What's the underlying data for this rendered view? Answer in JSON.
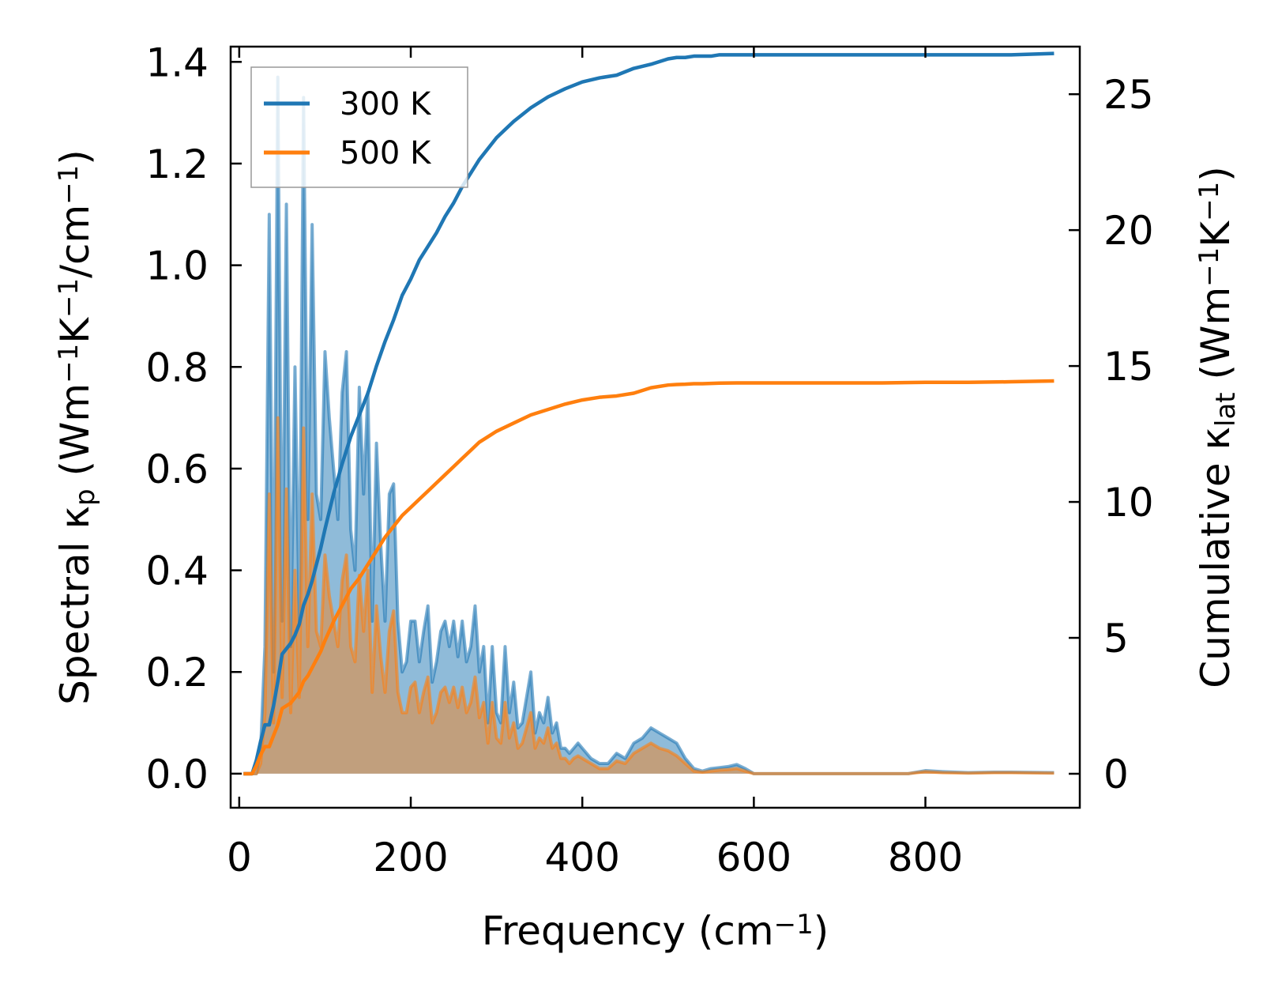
{
  "chart_data": {
    "type": "line",
    "xlabel": {
      "pre": "Frequency (cm",
      "sup": "−1",
      "post": ")"
    },
    "ylabel_left": {
      "parts": [
        {
          "t": "Spectral κ"
        },
        {
          "t": "p",
          "sub": true
        },
        {
          "t": " (Wm"
        },
        {
          "t": "−1",
          "sup": true
        },
        {
          "t": "K"
        },
        {
          "t": "−1",
          "sup": true
        },
        {
          "t": "/cm"
        },
        {
          "t": "−1",
          "sup": true
        },
        {
          "t": ")"
        }
      ]
    },
    "ylabel_right": {
      "parts": [
        {
          "t": "Cumulative κ"
        },
        {
          "t": "lat",
          "sub": true
        },
        {
          "t": " (Wm"
        },
        {
          "t": "−1",
          "sup": true
        },
        {
          "t": "K"
        },
        {
          "t": "−1",
          "sup": true
        },
        {
          "t": ")"
        }
      ]
    },
    "xlim": [
      -10,
      980
    ],
    "ylim_left": [
      -0.067,
      1.43
    ],
    "ylim_right": [
      -1.25,
      26.75
    ],
    "xticks": [
      0,
      200,
      400,
      600,
      800
    ],
    "xtick_labels": [
      "0",
      "200",
      "400",
      "600",
      "800"
    ],
    "yticks_left": [
      0.0,
      0.2,
      0.4,
      0.6,
      0.8,
      1.0,
      1.2,
      1.4
    ],
    "ytick_labels_left": [
      "0.0",
      "0.2",
      "0.4",
      "0.6",
      "0.8",
      "1.0",
      "1.2",
      "1.4"
    ],
    "yticks_right": [
      0,
      5,
      10,
      15,
      20,
      25
    ],
    "ytick_labels_right": [
      "0",
      "5",
      "10",
      "15",
      "20",
      "25"
    ],
    "legend": {
      "position": "top-left",
      "entries": [
        "300 K",
        "500 K"
      ]
    },
    "series": [
      {
        "name": "300 K",
        "color": "#1f77b4",
        "spectral_x": [
          5,
          15,
          20,
          25,
          30,
          35,
          40,
          45,
          50,
          55,
          60,
          65,
          70,
          75,
          80,
          85,
          90,
          95,
          100,
          105,
          110,
          115,
          120,
          125,
          130,
          135,
          140,
          145,
          150,
          155,
          160,
          165,
          170,
          175,
          180,
          185,
          190,
          195,
          200,
          205,
          210,
          215,
          220,
          225,
          230,
          235,
          240,
          245,
          250,
          255,
          260,
          265,
          270,
          275,
          280,
          285,
          290,
          295,
          300,
          305,
          310,
          315,
          320,
          325,
          330,
          335,
          340,
          345,
          350,
          355,
          360,
          365,
          370,
          375,
          380,
          385,
          390,
          395,
          400,
          410,
          420,
          430,
          440,
          450,
          460,
          470,
          480,
          490,
          500,
          510,
          520,
          530,
          540,
          550,
          560,
          570,
          580,
          590,
          600,
          650,
          700,
          750,
          780,
          800,
          820,
          850,
          880,
          900,
          950
        ],
        "spectral_y": [
          0,
          0,
          0,
          0.05,
          0.25,
          1.1,
          0.2,
          1.37,
          0.3,
          1.12,
          0.25,
          0.8,
          0.3,
          1.33,
          0.5,
          1.08,
          0.55,
          0.5,
          0.83,
          0.7,
          0.6,
          0.5,
          0.75,
          0.83,
          0.48,
          0.4,
          0.76,
          0.55,
          0.75,
          0.3,
          0.65,
          0.45,
          0.3,
          0.55,
          0.57,
          0.3,
          0.2,
          0.22,
          0.3,
          0.3,
          0.22,
          0.28,
          0.33,
          0.18,
          0.22,
          0.28,
          0.3,
          0.25,
          0.3,
          0.23,
          0.3,
          0.22,
          0.25,
          0.33,
          0.2,
          0.25,
          0.1,
          0.25,
          0.12,
          0.1,
          0.25,
          0.12,
          0.18,
          0.09,
          0.1,
          0.15,
          0.2,
          0.08,
          0.12,
          0.1,
          0.15,
          0.08,
          0.1,
          0.05,
          0.05,
          0.04,
          0.05,
          0.06,
          0.05,
          0.03,
          0.02,
          0.02,
          0.04,
          0.03,
          0.06,
          0.07,
          0.09,
          0.08,
          0.07,
          0.06,
          0.03,
          0.01,
          0.005,
          0.01,
          0.012,
          0.014,
          0.018,
          0.01,
          0,
          0,
          0,
          0,
          0,
          0.006,
          0.004,
          0.002,
          0.003,
          0.003,
          0.002
        ],
        "cumulative_x": [
          5,
          15,
          20,
          25,
          30,
          35,
          40,
          45,
          50,
          55,
          60,
          65,
          70,
          75,
          80,
          85,
          90,
          95,
          100,
          110,
          120,
          130,
          140,
          150,
          160,
          170,
          180,
          190,
          200,
          210,
          220,
          230,
          240,
          250,
          260,
          270,
          280,
          290,
          300,
          320,
          340,
          360,
          380,
          400,
          420,
          440,
          460,
          480,
          500,
          510,
          520,
          530,
          540,
          550,
          560,
          580,
          600,
          650,
          700,
          750,
          800,
          850,
          900,
          950
        ],
        "cumulative_y": [
          0,
          0,
          0.5,
          1.2,
          1.8,
          1.8,
          2.5,
          3.4,
          4.4,
          4.6,
          4.8,
          5.1,
          5.5,
          6.2,
          6.6,
          7.1,
          7.7,
          8.3,
          9.0,
          10.3,
          11.4,
          12.4,
          13.2,
          14.0,
          15.0,
          15.9,
          16.7,
          17.6,
          18.2,
          18.9,
          19.4,
          19.9,
          20.5,
          21.0,
          21.6,
          22.1,
          22.6,
          23.0,
          23.4,
          24.0,
          24.5,
          24.9,
          25.2,
          25.45,
          25.6,
          25.7,
          25.95,
          26.1,
          26.3,
          26.35,
          26.35,
          26.4,
          26.4,
          26.4,
          26.45,
          26.45,
          26.45,
          26.45,
          26.45,
          26.45,
          26.45,
          26.45,
          26.45,
          26.5
        ]
      },
      {
        "name": "500 K",
        "color": "#ff7f0e",
        "spectral_x": [
          5,
          15,
          20,
          25,
          30,
          35,
          40,
          45,
          50,
          55,
          60,
          65,
          70,
          75,
          80,
          85,
          90,
          95,
          100,
          105,
          110,
          115,
          120,
          125,
          130,
          135,
          140,
          145,
          150,
          155,
          160,
          165,
          170,
          175,
          180,
          185,
          190,
          195,
          200,
          205,
          210,
          215,
          220,
          225,
          230,
          235,
          240,
          245,
          250,
          255,
          260,
          265,
          270,
          275,
          280,
          285,
          290,
          295,
          300,
          305,
          310,
          315,
          320,
          325,
          330,
          335,
          340,
          345,
          350,
          355,
          360,
          365,
          370,
          375,
          380,
          385,
          390,
          395,
          400,
          410,
          420,
          430,
          440,
          450,
          460,
          470,
          480,
          490,
          500,
          510,
          520,
          530,
          540,
          550,
          560,
          570,
          580,
          590,
          600,
          650,
          700,
          750,
          780,
          800,
          820,
          850,
          880,
          900,
          950
        ],
        "spectral_y": [
          0,
          0,
          0,
          0.02,
          0.12,
          0.55,
          0.1,
          0.7,
          0.15,
          0.56,
          0.12,
          0.4,
          0.15,
          0.68,
          0.25,
          0.55,
          0.28,
          0.25,
          0.43,
          0.35,
          0.3,
          0.25,
          0.38,
          0.43,
          0.25,
          0.22,
          0.39,
          0.28,
          0.4,
          0.16,
          0.33,
          0.23,
          0.16,
          0.28,
          0.32,
          0.16,
          0.12,
          0.12,
          0.17,
          0.18,
          0.12,
          0.16,
          0.19,
          0.1,
          0.12,
          0.16,
          0.17,
          0.14,
          0.17,
          0.13,
          0.17,
          0.12,
          0.14,
          0.19,
          0.11,
          0.14,
          0.06,
          0.14,
          0.07,
          0.06,
          0.14,
          0.07,
          0.1,
          0.05,
          0.06,
          0.09,
          0.12,
          0.05,
          0.07,
          0.06,
          0.09,
          0.05,
          0.06,
          0.03,
          0.03,
          0.02,
          0.03,
          0.035,
          0.03,
          0.02,
          0.01,
          0.01,
          0.025,
          0.02,
          0.04,
          0.05,
          0.06,
          0.05,
          0.045,
          0.035,
          0.02,
          0.005,
          0.003,
          0.005,
          0.007,
          0.008,
          0.01,
          0.005,
          0,
          0,
          0,
          0,
          0,
          0.004,
          0.002,
          0.001,
          0.002,
          0.002,
          0.001
        ],
        "cumulative_x": [
          5,
          15,
          20,
          25,
          30,
          35,
          40,
          45,
          50,
          55,
          60,
          65,
          70,
          75,
          80,
          85,
          90,
          95,
          100,
          110,
          120,
          130,
          140,
          150,
          160,
          170,
          180,
          190,
          200,
          210,
          220,
          230,
          240,
          250,
          260,
          270,
          280,
          290,
          300,
          320,
          340,
          360,
          380,
          400,
          420,
          440,
          460,
          480,
          500,
          510,
          520,
          530,
          540,
          550,
          560,
          580,
          600,
          650,
          700,
          750,
          800,
          850,
          900,
          950
        ],
        "cumulative_y": [
          0,
          0,
          0.3,
          0.7,
          1.0,
          1.0,
          1.4,
          1.8,
          2.4,
          2.5,
          2.6,
          2.8,
          3.0,
          3.4,
          3.6,
          3.9,
          4.2,
          4.5,
          4.9,
          5.6,
          6.2,
          6.8,
          7.2,
          7.7,
          8.2,
          8.7,
          9.1,
          9.5,
          9.8,
          10.1,
          10.4,
          10.7,
          11.0,
          11.3,
          11.6,
          11.9,
          12.2,
          12.4,
          12.6,
          12.9,
          13.2,
          13.4,
          13.6,
          13.75,
          13.85,
          13.9,
          14.0,
          14.2,
          14.3,
          14.32,
          14.33,
          14.35,
          14.35,
          14.36,
          14.37,
          14.38,
          14.38,
          14.38,
          14.38,
          14.38,
          14.4,
          14.4,
          14.42,
          14.45
        ]
      }
    ]
  }
}
